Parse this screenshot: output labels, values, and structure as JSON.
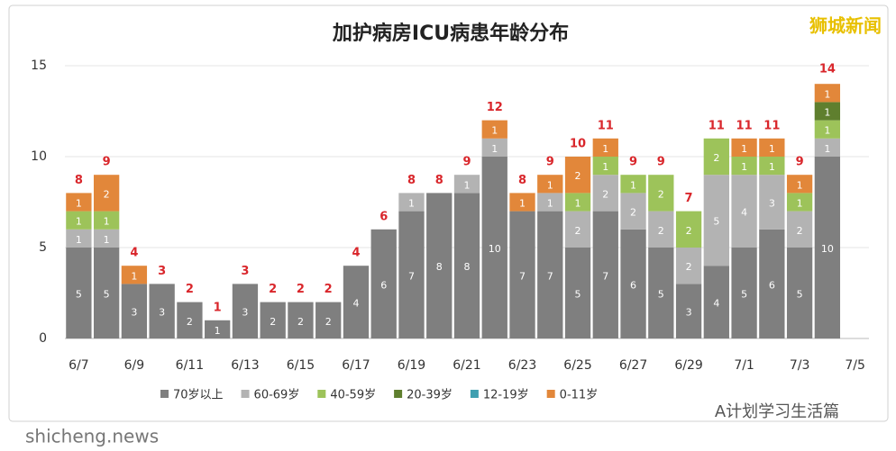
{
  "chart_data": {
    "type": "stacked_bar",
    "title": "加护病房ICU病患年龄分布",
    "categories": [
      "6/7",
      null,
      "6/9",
      null,
      "6/11",
      null,
      "6/13",
      null,
      "6/15",
      null,
      "6/17",
      null,
      "6/19",
      null,
      "6/21",
      null,
      "6/23",
      null,
      "6/25",
      null,
      "6/27",
      null,
      "6/29",
      null,
      "7/1",
      null,
      "7/3",
      null,
      "7/5"
    ],
    "series": [
      {
        "name": "70岁以上",
        "color": "#7f7f7f",
        "values": [
          5,
          5,
          3,
          3,
          2,
          1,
          3,
          2,
          2,
          2,
          4,
          6,
          7,
          8,
          8,
          10,
          7,
          7,
          5,
          7,
          6,
          5,
          3,
          4,
          5,
          6,
          5,
          10,
          null
        ]
      },
      {
        "name": "60-69岁",
        "color": "#b3b3b3",
        "values": [
          1,
          1,
          0,
          0,
          0,
          0,
          0,
          0,
          0,
          0,
          0,
          0,
          1,
          0,
          1,
          1,
          0,
          1,
          2,
          2,
          2,
          2,
          2,
          5,
          4,
          3,
          2,
          1,
          null
        ]
      },
      {
        "name": "40-59岁",
        "color": "#9dc35a",
        "values": [
          1,
          1,
          0,
          0,
          0,
          0,
          0,
          0,
          0,
          0,
          0,
          0,
          0,
          0,
          0,
          0,
          0,
          0,
          1,
          1,
          1,
          2,
          2,
          2,
          1,
          1,
          1,
          1,
          null
        ]
      },
      {
        "name": "20-39岁",
        "color": "#5f7f2e",
        "values": [
          0,
          0,
          0,
          0,
          0,
          0,
          0,
          0,
          0,
          0,
          0,
          0,
          0,
          0,
          0,
          0,
          0,
          0,
          0,
          0,
          0,
          0,
          0,
          0,
          0,
          0,
          0,
          1,
          null
        ]
      },
      {
        "name": "12-19岁",
        "color": "#3f9fb0",
        "values": [
          0,
          0,
          0,
          0,
          0,
          0,
          0,
          0,
          0,
          0,
          0,
          0,
          0,
          0,
          0,
          0,
          0,
          0,
          0,
          0,
          0,
          0,
          0,
          0,
          0,
          0,
          0,
          0,
          null
        ]
      },
      {
        "name": "0-11岁",
        "color": "#e2873a",
        "values": [
          1,
          2,
          1,
          0,
          0,
          0,
          0,
          0,
          0,
          0,
          0,
          0,
          0,
          0,
          0,
          1,
          1,
          1,
          2,
          1,
          0,
          0,
          0,
          0,
          1,
          1,
          1,
          1,
          null
        ]
      }
    ],
    "totals": [
      8,
      9,
      4,
      3,
      2,
      1,
      3,
      2,
      2,
      2,
      4,
      6,
      8,
      8,
      9,
      12,
      8,
      9,
      10,
      11,
      9,
      9,
      7,
      11,
      11,
      11,
      9,
      14,
      null
    ],
    "ylim": [
      0,
      15
    ],
    "yticks": [
      0,
      5,
      10,
      15
    ],
    "grid": true,
    "legend": "bottom"
  },
  "watermarks": {
    "brand": "狮城新闻",
    "site": "shicheng.news",
    "account": "A计划学习生活篇"
  }
}
